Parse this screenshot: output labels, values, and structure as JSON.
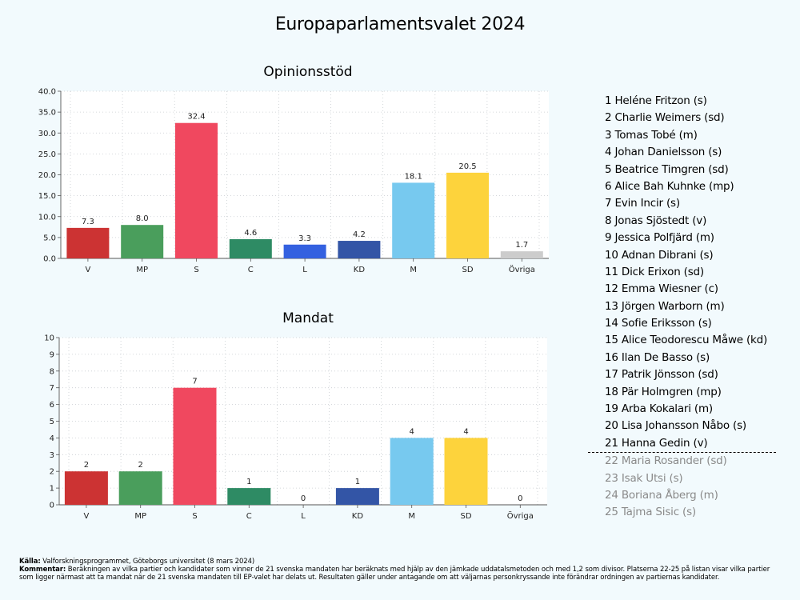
{
  "title": "Europaparlamentsvalet 2024",
  "chart_data": [
    {
      "type": "bar",
      "title": "Opinionsstöd",
      "categories": [
        "V",
        "MP",
        "S",
        "C",
        "L",
        "KD",
        "M",
        "SD",
        "Övriga"
      ],
      "values": [
        7.3,
        8.0,
        32.4,
        4.6,
        3.3,
        4.2,
        18.1,
        20.5,
        1.7
      ],
      "value_labels": [
        "7.3",
        "8.0",
        "32.4",
        "4.6",
        "3.3",
        "4.2",
        "18.1",
        "20.5",
        "1.7"
      ],
      "yticks": [
        "0.0",
        "5.0",
        "10.0",
        "15.0",
        "20.0",
        "25.0",
        "30.0",
        "35.0",
        "40.0"
      ],
      "ylim": [
        0,
        40
      ],
      "colors": [
        "#cc3333",
        "#4a9e5c",
        "#f0485f",
        "#2e8b64",
        "#3461e0",
        "#3355a6",
        "#77c9ef",
        "#fdd33c",
        "#cccccc"
      ],
      "grid": true
    },
    {
      "type": "bar",
      "title": "Mandat",
      "categories": [
        "V",
        "MP",
        "S",
        "C",
        "L",
        "KD",
        "M",
        "SD",
        "Övriga"
      ],
      "values": [
        2,
        2,
        7,
        1,
        0,
        1,
        4,
        4,
        0
      ],
      "value_labels": [
        "2",
        "2",
        "7",
        "1",
        "0",
        "1",
        "4",
        "4",
        "0"
      ],
      "yticks": [
        "0",
        "1",
        "2",
        "3",
        "4",
        "5",
        "6",
        "7",
        "8",
        "9",
        "10"
      ],
      "ylim": [
        0,
        10
      ],
      "colors": [
        "#cc3333",
        "#4a9e5c",
        "#f0485f",
        "#2e8b64",
        "#3461e0",
        "#3355a6",
        "#77c9ef",
        "#fdd33c",
        "#cccccc"
      ],
      "grid": true
    }
  ],
  "candidates": [
    {
      "label": "1 Heléne Fritzon (s)",
      "elected": true
    },
    {
      "label": "2 Charlie Weimers (sd)",
      "elected": true
    },
    {
      "label": "3 Tomas Tobé (m)",
      "elected": true
    },
    {
      "label": "4 Johan Danielsson (s)",
      "elected": true
    },
    {
      "label": "5 Beatrice Timgren (sd)",
      "elected": true
    },
    {
      "label": "6 Alice Bah Kuhnke (mp)",
      "elected": true
    },
    {
      "label": "7 Evin Incir (s)",
      "elected": true
    },
    {
      "label": "8 Jonas Sjöstedt (v)",
      "elected": true
    },
    {
      "label": "9 Jessica Polfjärd (m)",
      "elected": true
    },
    {
      "label": "10 Adnan Dibrani (s)",
      "elected": true
    },
    {
      "label": "11 Dick Erixon (sd)",
      "elected": true
    },
    {
      "label": "12 Emma Wiesner (c)",
      "elected": true
    },
    {
      "label": "13 Jörgen Warborn (m)",
      "elected": true
    },
    {
      "label": "14 Sofie Eriksson (s)",
      "elected": true
    },
    {
      "label": "15 Alice Teodorescu Måwe (kd)",
      "elected": true
    },
    {
      "label": "16 Ilan De Basso (s)",
      "elected": true
    },
    {
      "label": "17 Patrik Jönsson (sd)",
      "elected": true
    },
    {
      "label": "18 Pär Holmgren (mp)",
      "elected": true
    },
    {
      "label": "19 Arba Kokalari (m)",
      "elected": true
    },
    {
      "label": "20 Lisa Johansson Nåbo (s)",
      "elected": true
    },
    {
      "label": "21 Hanna Gedin (v)",
      "elected": true
    },
    {
      "label": "22 Maria Rosander (sd)",
      "elected": false
    },
    {
      "label": "23 Isak Utsi (s)",
      "elected": false
    },
    {
      "label": "24 Boriana Åberg (m)",
      "elected": false
    },
    {
      "label": "25 Tajma Sisic (s)",
      "elected": false
    }
  ],
  "footer": {
    "source_label": "Källa:",
    "source_text": " Valforskningsprogrammet, Göteborgs universitet (8 mars 2024)",
    "comment_label": "Kommentar:",
    "comment_text": " Beräkningen av vilka partier och kandidater som vinner de 21 svenska mandaten har beräknats med hjälp av den jämkade uddatalsmetoden och med 1,2 som divisor. Platserna 22-25 på listan visar vilka partier som ligger närmast att ta mandat när de 21 svenska mandaten till EP-valet har delats ut. Resultaten gäller under antagande om att väljarnas personkryssande inte förändrar ordningen av partiernas kandidater."
  }
}
